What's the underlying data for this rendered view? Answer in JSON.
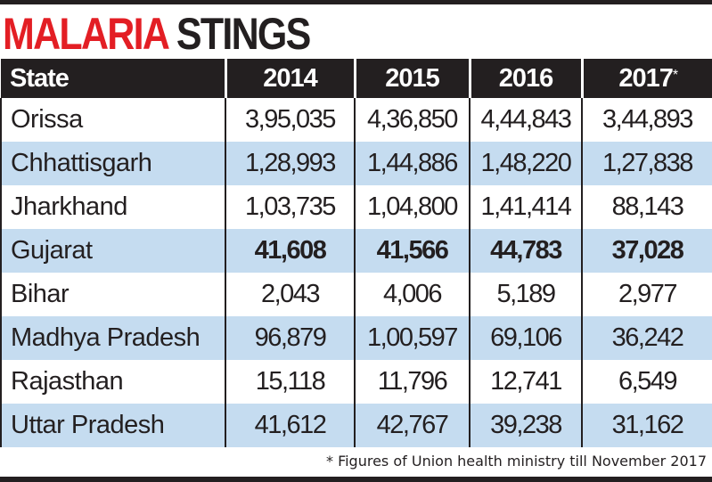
{
  "title": {
    "part1": "MALARIA",
    "part2": "STINGS"
  },
  "colors": {
    "title_red": "#e31e24",
    "header_bg": "#231f20",
    "alt_row": "#c5dcf0"
  },
  "chart_data": {
    "type": "table",
    "columns": [
      "State",
      "2014",
      "2015",
      "2016",
      "2017"
    ],
    "column_marks": {
      "2017": "*"
    },
    "rows": [
      {
        "state": "Orissa",
        "values": [
          "3,95,035",
          "4,36,850",
          "4,44,843",
          "3,44,893"
        ],
        "bold": false
      },
      {
        "state": "Chhattisgarh",
        "values": [
          "1,28,993",
          "1,44,886",
          "1,48,220",
          "1,27,838"
        ],
        "bold": false
      },
      {
        "state": "Jharkhand",
        "values": [
          "1,03,735",
          "1,04,800",
          "1,41,414",
          "88,143"
        ],
        "bold": false
      },
      {
        "state": "Gujarat",
        "values": [
          "41,608",
          "41,566",
          "44,783",
          "37,028"
        ],
        "bold": true
      },
      {
        "state": "Bihar",
        "values": [
          "2,043",
          "4,006",
          "5,189",
          "2,977"
        ],
        "bold": false
      },
      {
        "state": "Madhya Pradesh",
        "values": [
          "96,879",
          "1,00,597",
          "69,106",
          "36,242"
        ],
        "bold": false
      },
      {
        "state": "Rajasthan",
        "values": [
          "15,118",
          "11,796",
          "12,741",
          "6,549"
        ],
        "bold": false
      },
      {
        "state": "Uttar Pradesh",
        "values": [
          "41,612",
          "42,767",
          "39,238",
          "31,162"
        ],
        "bold": false
      }
    ],
    "footnote": "* Figures of Union health ministry till November 2017"
  }
}
